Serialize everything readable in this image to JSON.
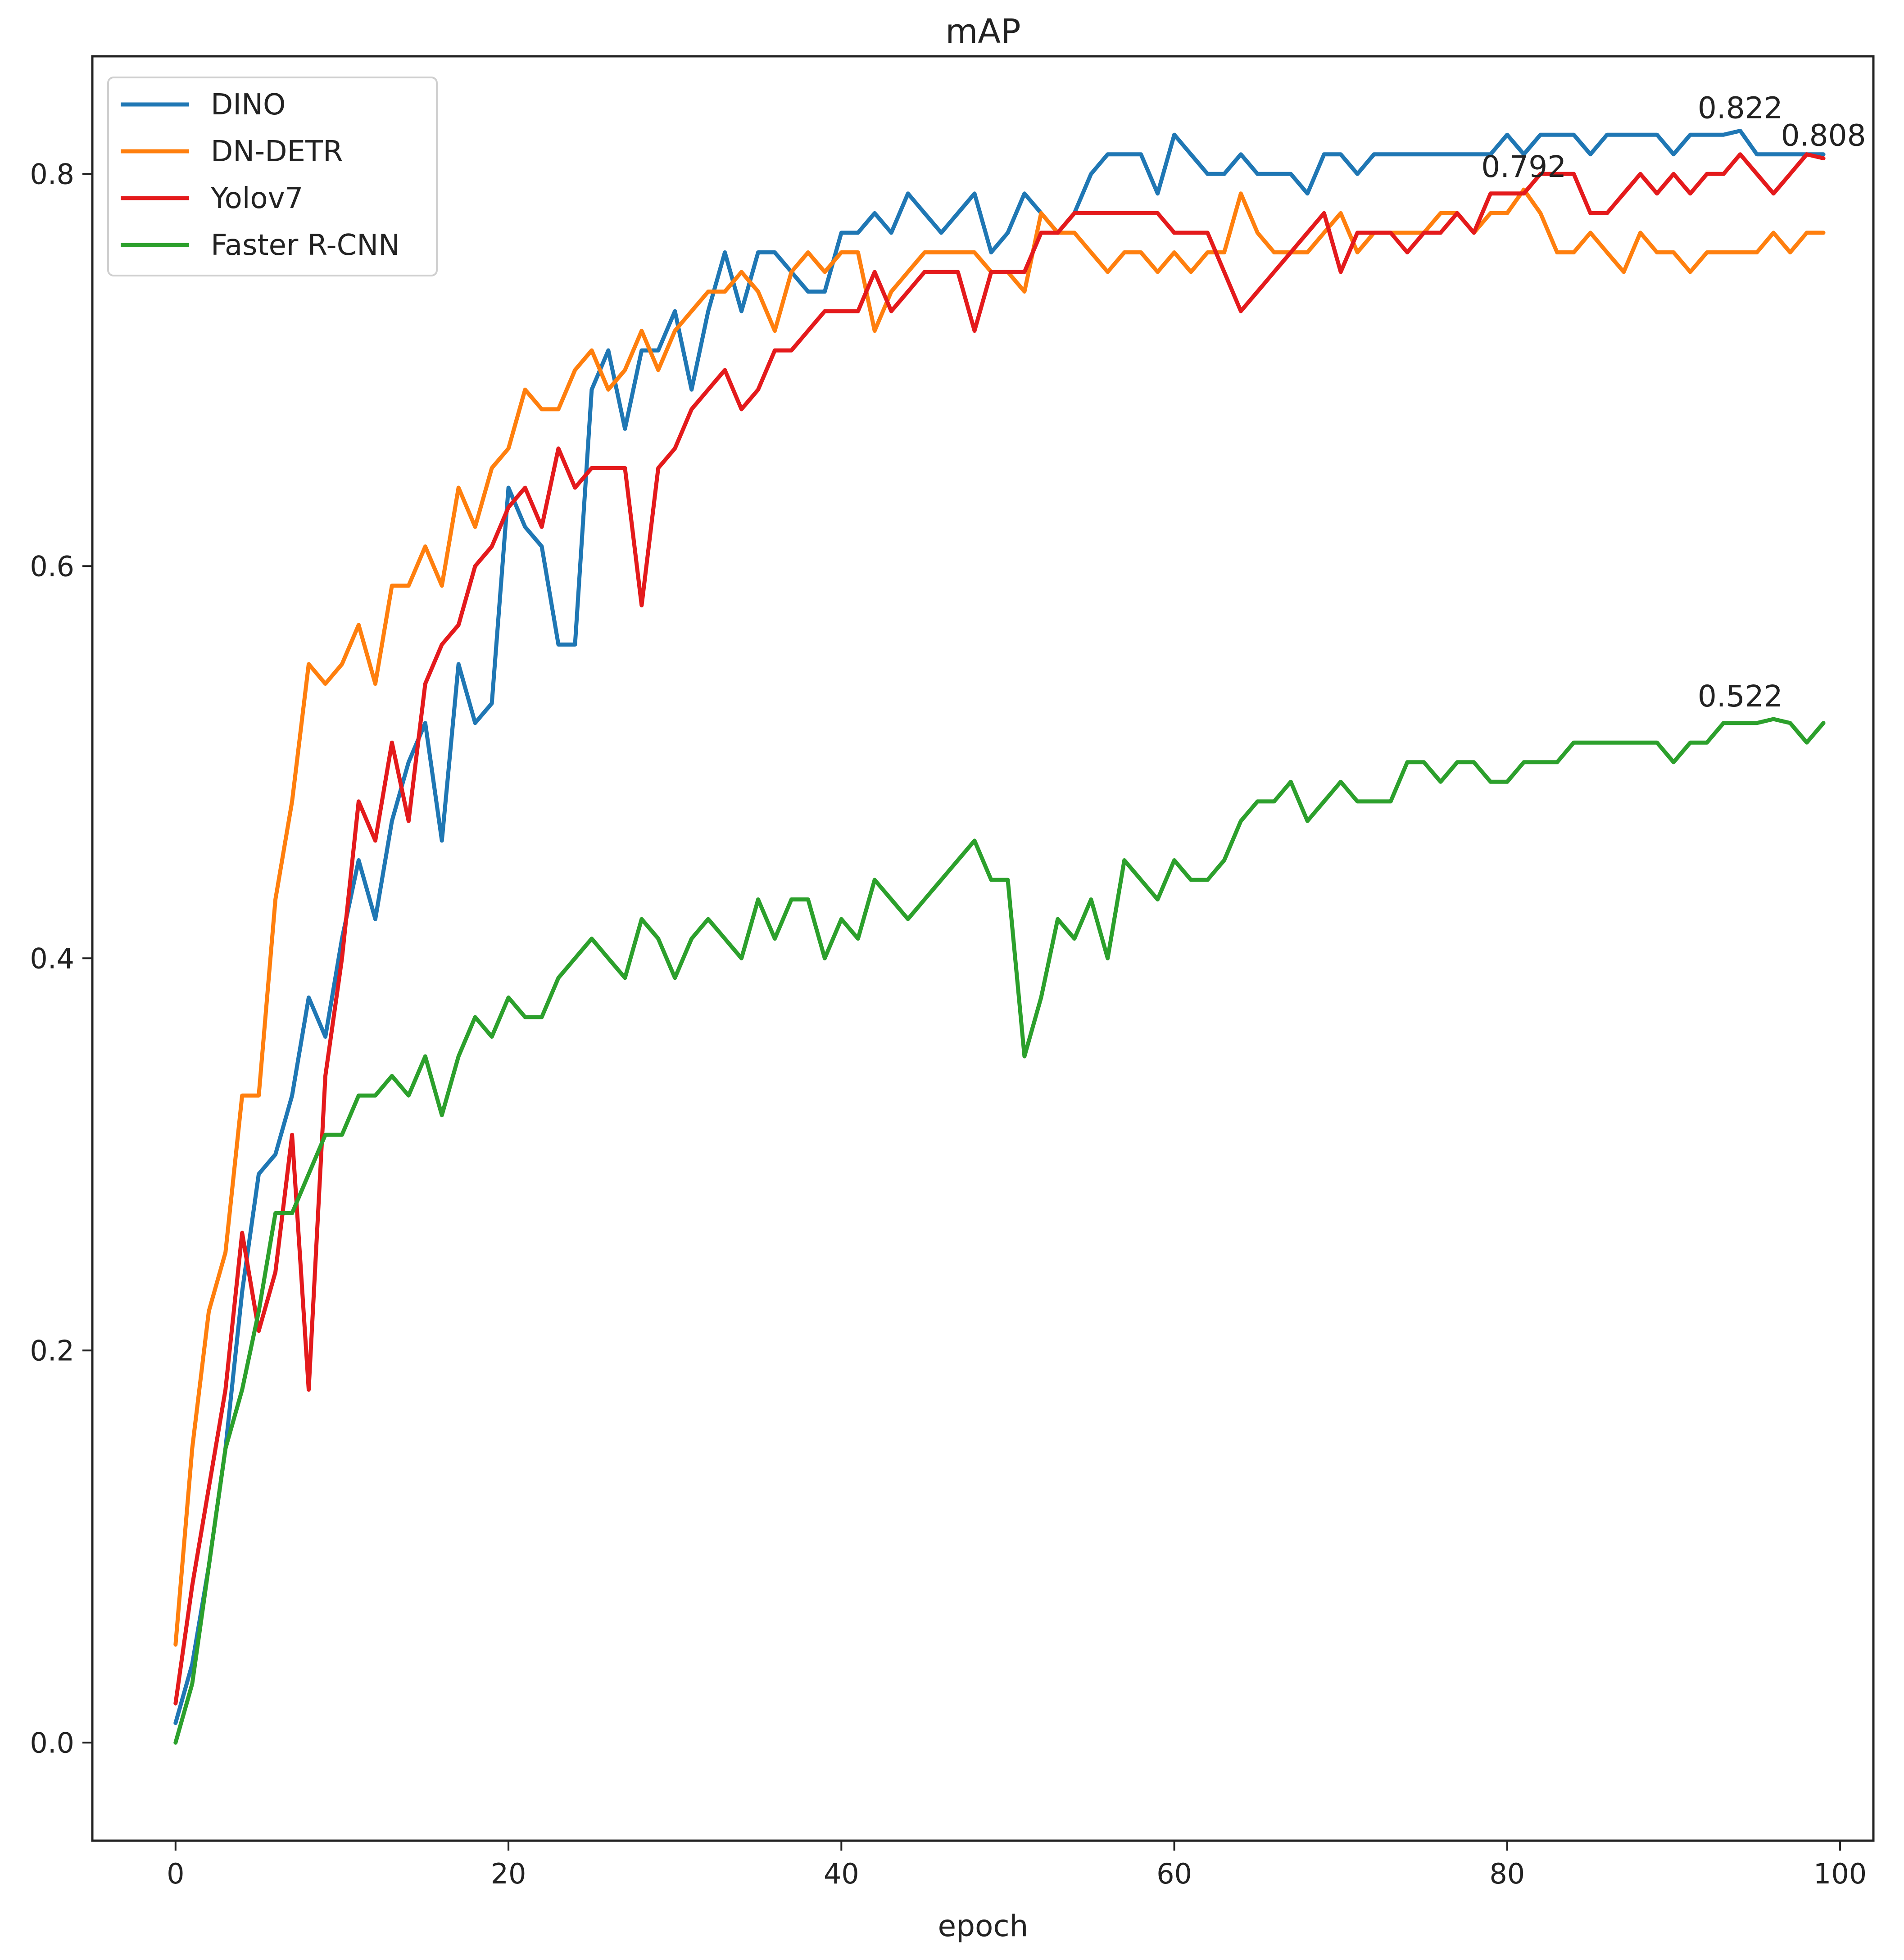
{
  "chart_data": {
    "type": "line",
    "title": "mAP",
    "xlabel": "epoch",
    "ylabel": "",
    "xlim": [
      -5,
      102
    ],
    "ylim": [
      -0.05,
      0.86
    ],
    "xticks": [
      0,
      20,
      40,
      60,
      80,
      100
    ],
    "xtick_labels": [
      "0",
      "20",
      "40",
      "60",
      "80",
      "100"
    ],
    "yticks": [
      0.0,
      0.2,
      0.4,
      0.6,
      0.8
    ],
    "ytick_labels": [
      "0.0",
      "0.2",
      "0.4",
      "0.6",
      "0.8"
    ],
    "grid": false,
    "legend_position": "top-left",
    "series": [
      {
        "name": "DINO",
        "color": "#1f77b4",
        "values": [
          0.01,
          0.04,
          0.09,
          0.15,
          0.23,
          0.29,
          0.3,
          0.33,
          0.38,
          0.36,
          0.41,
          0.45,
          0.42,
          0.47,
          0.5,
          0.52,
          0.46,
          0.55,
          0.52,
          0.53,
          0.64,
          0.62,
          0.61,
          0.56,
          0.56,
          0.69,
          0.71,
          0.67,
          0.71,
          0.71,
          0.73,
          0.69,
          0.73,
          0.76,
          0.73,
          0.76,
          0.76,
          0.75,
          0.74,
          0.74,
          0.77,
          0.77,
          0.78,
          0.77,
          0.79,
          0.78,
          0.77,
          0.78,
          0.79,
          0.76,
          0.77,
          0.79,
          0.78,
          0.77,
          0.78,
          0.8,
          0.81,
          0.81,
          0.81,
          0.79,
          0.82,
          0.81,
          0.8,
          0.8,
          0.81,
          0.8,
          0.8,
          0.8,
          0.79,
          0.81,
          0.81,
          0.8,
          0.81,
          0.81,
          0.81,
          0.81,
          0.81,
          0.81,
          0.81,
          0.81,
          0.82,
          0.81,
          0.82,
          0.82,
          0.82,
          0.81,
          0.82,
          0.82,
          0.82,
          0.82,
          0.81,
          0.82,
          0.82,
          0.82,
          0.822,
          0.81,
          0.81,
          0.81,
          0.81,
          0.81
        ]
      },
      {
        "name": "DN-DETR",
        "color": "#ff7f0e",
        "values": [
          0.05,
          0.15,
          0.22,
          0.25,
          0.33,
          0.33,
          0.43,
          0.48,
          0.55,
          0.54,
          0.55,
          0.57,
          0.54,
          0.59,
          0.59,
          0.61,
          0.59,
          0.64,
          0.62,
          0.65,
          0.66,
          0.69,
          0.68,
          0.68,
          0.7,
          0.71,
          0.69,
          0.7,
          0.72,
          0.7,
          0.72,
          0.73,
          0.74,
          0.74,
          0.75,
          0.74,
          0.72,
          0.75,
          0.76,
          0.75,
          0.76,
          0.76,
          0.72,
          0.74,
          0.75,
          0.76,
          0.76,
          0.76,
          0.76,
          0.75,
          0.75,
          0.74,
          0.78,
          0.77,
          0.77,
          0.76,
          0.75,
          0.76,
          0.76,
          0.75,
          0.76,
          0.75,
          0.76,
          0.76,
          0.79,
          0.77,
          0.76,
          0.76,
          0.76,
          0.77,
          0.78,
          0.76,
          0.77,
          0.77,
          0.77,
          0.77,
          0.78,
          0.78,
          0.77,
          0.78,
          0.78,
          0.792,
          0.78,
          0.76,
          0.76,
          0.77,
          0.76,
          0.75,
          0.77,
          0.76,
          0.76,
          0.75,
          0.76,
          0.76,
          0.76,
          0.76,
          0.77,
          0.76,
          0.77,
          0.77
        ]
      },
      {
        "name": "Yolov7",
        "color": "#e41a1c",
        "values": [
          0.02,
          0.08,
          0.13,
          0.18,
          0.26,
          0.21,
          0.24,
          0.31,
          0.18,
          0.34,
          0.4,
          0.48,
          0.46,
          0.51,
          0.47,
          0.54,
          0.56,
          0.57,
          0.6,
          0.61,
          0.63,
          0.64,
          0.62,
          0.66,
          0.64,
          0.65,
          0.65,
          0.65,
          0.58,
          0.65,
          0.66,
          0.68,
          0.69,
          0.7,
          0.68,
          0.69,
          0.71,
          0.71,
          0.72,
          0.73,
          0.73,
          0.73,
          0.75,
          0.73,
          0.74,
          0.75,
          0.75,
          0.75,
          0.72,
          0.75,
          0.75,
          0.75,
          0.77,
          0.77,
          0.78,
          0.78,
          0.78,
          0.78,
          0.78,
          0.78,
          0.77,
          0.77,
          0.77,
          0.75,
          0.73,
          0.74,
          0.75,
          0.76,
          0.77,
          0.78,
          0.75,
          0.77,
          0.77,
          0.77,
          0.76,
          0.77,
          0.77,
          0.78,
          0.77,
          0.79,
          0.79,
          0.79,
          0.8,
          0.8,
          0.8,
          0.78,
          0.78,
          0.79,
          0.8,
          0.79,
          0.8,
          0.79,
          0.8,
          0.8,
          0.81,
          0.8,
          0.79,
          0.8,
          0.81,
          0.808
        ]
      },
      {
        "name": "Faster R-CNN",
        "color": "#2ca02c",
        "values": [
          0.0,
          0.03,
          0.09,
          0.15,
          0.18,
          0.22,
          0.27,
          0.27,
          0.29,
          0.31,
          0.31,
          0.33,
          0.33,
          0.34,
          0.33,
          0.35,
          0.32,
          0.35,
          0.37,
          0.36,
          0.38,
          0.37,
          0.37,
          0.39,
          0.4,
          0.41,
          0.4,
          0.39,
          0.42,
          0.41,
          0.39,
          0.41,
          0.42,
          0.41,
          0.4,
          0.43,
          0.41,
          0.43,
          0.43,
          0.4,
          0.42,
          0.41,
          0.44,
          0.43,
          0.42,
          0.43,
          0.44,
          0.45,
          0.46,
          0.44,
          0.44,
          0.35,
          0.38,
          0.42,
          0.41,
          0.43,
          0.4,
          0.45,
          0.44,
          0.43,
          0.45,
          0.44,
          0.44,
          0.45,
          0.47,
          0.48,
          0.48,
          0.49,
          0.47,
          0.48,
          0.49,
          0.48,
          0.48,
          0.48,
          0.5,
          0.5,
          0.49,
          0.5,
          0.5,
          0.49,
          0.49,
          0.5,
          0.5,
          0.5,
          0.51,
          0.51,
          0.51,
          0.51,
          0.51,
          0.51,
          0.5,
          0.51,
          0.51,
          0.52,
          0.52,
          0.52,
          0.522,
          0.52,
          0.51,
          0.52
        ]
      }
    ],
    "annotations": [
      {
        "text": "0.822",
        "x": 94,
        "y": 0.822
      },
      {
        "text": "0.808",
        "x": 99,
        "y": 0.808
      },
      {
        "text": "0.792",
        "x": 81,
        "y": 0.792
      },
      {
        "text": "0.522",
        "x": 94,
        "y": 0.522
      }
    ]
  }
}
